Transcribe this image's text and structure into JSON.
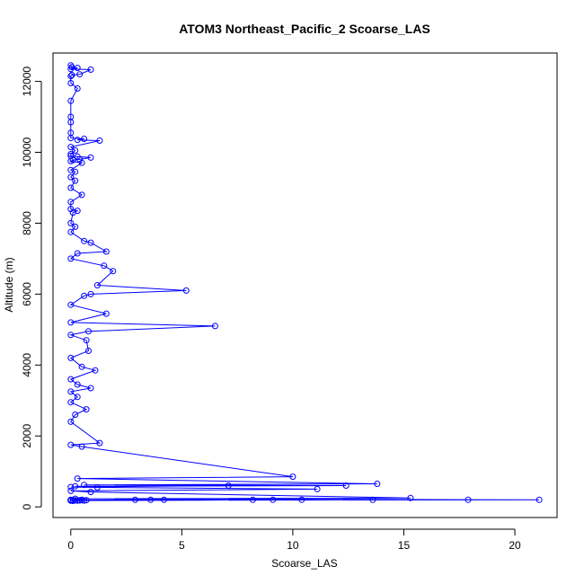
{
  "chart_data": {
    "type": "line",
    "title": "ATOM3 Northeast_Pacific_2 Scoarse_LAS",
    "xlabel": "Scoarse_LAS",
    "ylabel": "Altitude (m)",
    "xlim": [
      -0.8,
      21.9
    ],
    "ylim": [
      -300,
      12800
    ],
    "x_ticks": [
      0,
      5,
      10,
      15,
      20
    ],
    "y_ticks": [
      0,
      2000,
      4000,
      6000,
      8000,
      10000,
      12000
    ],
    "grid": false,
    "marker": "open-circle",
    "line_color": "#0000ff",
    "series": [
      {
        "x": [
          0.0,
          0.05,
          0.3,
          0.0,
          0.9,
          0.4,
          0.05,
          0.0,
          0.0,
          0.3,
          0.0,
          0.0,
          0.0,
          0.0,
          0.0,
          0.6,
          0.3,
          1.3,
          0.0,
          0.2,
          0.0,
          0.0,
          0.3,
          0.9,
          0.4,
          0.1,
          0.0,
          0.5,
          0.0,
          0.2,
          0.0,
          0.2,
          0.0,
          0.5,
          0.0,
          0.0,
          0.3,
          0.1,
          0.0,
          0.2,
          0.0,
          0.6,
          0.9,
          1.6,
          0.3,
          0.0,
          1.5,
          1.9,
          1.2,
          5.2,
          0.9,
          0.6,
          0.0,
          1.6,
          0.0,
          6.5,
          0.8,
          0.0,
          0.7,
          0.8,
          0.0,
          0.5,
          1.1,
          0.0,
          0.3,
          0.9,
          0.0,
          0.3,
          0.0,
          0.7,
          0.2,
          0.0,
          1.3,
          0.0,
          0.5,
          10.0,
          0.3,
          13.8,
          0.6,
          12.4,
          0.2,
          7.1,
          0.0,
          1.2,
          11.1,
          0.0,
          0.9,
          15.3,
          0.2,
          21.1,
          0.5,
          17.9,
          0.1,
          13.6,
          0.3,
          10.4,
          0.0,
          8.2,
          0.0,
          9.1,
          0.1,
          3.6,
          0.4,
          4.2,
          0.0,
          2.9,
          0.6,
          0.1,
          0.0,
          0.7,
          0.2,
          0.0,
          0.5,
          0.0,
          0.4,
          0.0
        ],
        "y": [
          12450,
          12400,
          12380,
          12350,
          12330,
          12200,
          12180,
          12150,
          11950,
          11800,
          11450,
          11000,
          10850,
          10550,
          10400,
          10380,
          10350,
          10330,
          10150,
          10050,
          9950,
          9900,
          9880,
          9850,
          9800,
          9780,
          9750,
          9700,
          9500,
          9450,
          9300,
          9200,
          9000,
          8800,
          8600,
          8400,
          8350,
          8300,
          8000,
          7900,
          7750,
          7500,
          7450,
          7200,
          7150,
          7000,
          6800,
          6650,
          6250,
          6100,
          6000,
          5950,
          5700,
          5450,
          5200,
          5100,
          4950,
          4850,
          4700,
          4400,
          4200,
          3950,
          3850,
          3600,
          3450,
          3350,
          3250,
          3100,
          2950,
          2750,
          2600,
          2400,
          1800,
          1750,
          1700,
          850,
          800,
          650,
          620,
          600,
          580,
          600,
          560,
          550,
          500,
          450,
          420,
          250,
          230,
          200,
          190,
          200,
          185,
          200,
          180,
          200,
          180,
          200,
          190,
          200,
          190,
          200,
          185,
          200,
          190,
          200,
          180,
          170,
          200,
          190,
          185,
          180,
          200,
          190,
          185,
          180
        ]
      }
    ]
  }
}
